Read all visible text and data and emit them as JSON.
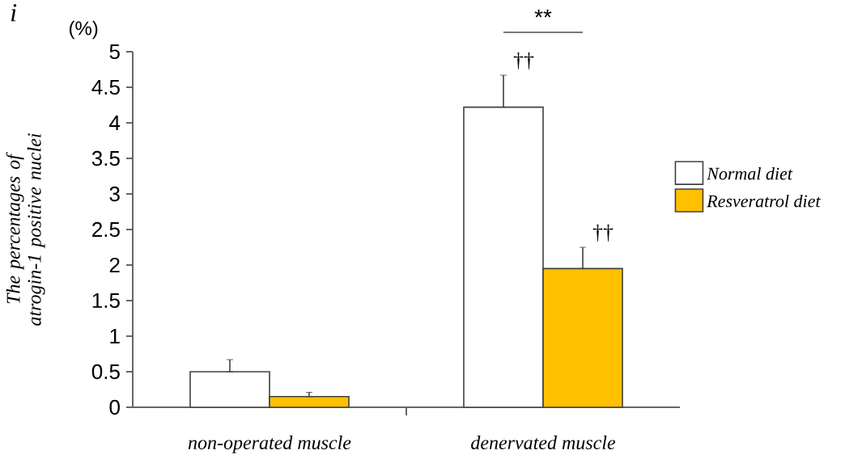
{
  "chart_data": {
    "type": "bar",
    "ylabel": "The percentages of atrogin-1 positive nuclei",
    "categories": [
      "non-operated muscle",
      "denervated muscle"
    ],
    "series": [
      {
        "name": "Normal diet",
        "color": "#ffffff",
        "values": [
          0.5,
          4.22
        ],
        "errors": [
          [
            0.5,
            0.67
          ],
          [
            4.22,
            4.67
          ]
        ]
      },
      {
        "name": "Resveratrol diet",
        "color": "#ffc000",
        "values": [
          0.15,
          1.95
        ],
        "errors": [
          [
            0.15,
            0.21
          ],
          [
            1.95,
            2.25
          ]
        ]
      }
    ],
    "ylim": [
      0,
      5
    ],
    "yticks": [
      0,
      0.5,
      1,
      1.5,
      2,
      2.5,
      3,
      3.5,
      4,
      4.5,
      5
    ],
    "legend": "right",
    "annotations": [
      "i",
      "(%)",
      "**",
      "††",
      "††"
    ]
  }
}
